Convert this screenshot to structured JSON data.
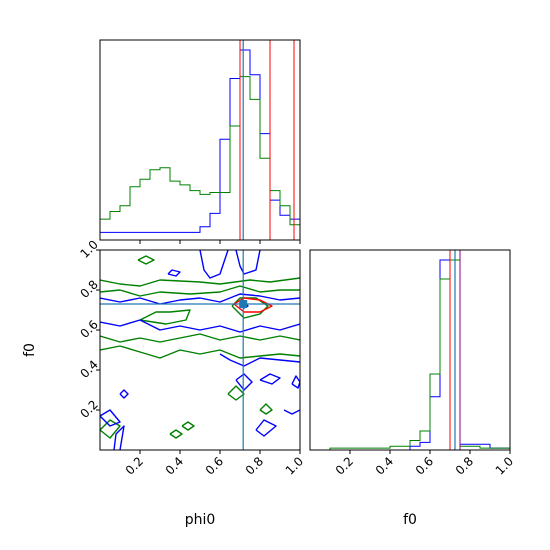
{
  "chart_data": [
    {
      "type": "line",
      "panel": "phi0-histogram",
      "xlim": [
        0,
        1
      ],
      "series": [
        {
          "color": "#0000ff",
          "edges": [
            0.0,
            0.05,
            0.1,
            0.15,
            0.2,
            0.25,
            0.3,
            0.35,
            0.4,
            0.45,
            0.5,
            0.55,
            0.6,
            0.65,
            0.7,
            0.75,
            0.8,
            0.85,
            0.9,
            0.95,
            1.0
          ],
          "values": [
            0.04,
            0.04,
            0.04,
            0.04,
            0.04,
            0.04,
            0.04,
            0.04,
            0.04,
            0.04,
            0.07,
            0.14,
            0.53,
            0.85,
            1.0,
            0.87,
            0.56,
            0.21,
            0.13,
            0.11
          ]
        },
        {
          "color": "#008000",
          "edges": [
            0.0,
            0.05,
            0.1,
            0.15,
            0.2,
            0.25,
            0.3,
            0.35,
            0.4,
            0.45,
            0.5,
            0.55,
            0.6,
            0.65,
            0.7,
            0.75,
            0.8,
            0.85,
            0.9,
            0.95,
            1.0
          ],
          "values": [
            0.11,
            0.15,
            0.18,
            0.28,
            0.32,
            0.37,
            0.38,
            0.31,
            0.29,
            0.26,
            0.24,
            0.25,
            0.25,
            0.6,
            0.86,
            0.74,
            0.43,
            0.26,
            0.18,
            0.08
          ]
        },
        {
          "color": "#ff0000",
          "vertical_lines": [
            0.7,
            0.85,
            0.97
          ]
        }
      ],
      "truth_line": 0.716
    },
    {
      "type": "line",
      "panel": "f0-histogram",
      "xlim": [
        0,
        1
      ],
      "series": [
        {
          "color": "#0000ff",
          "edges": [
            0.0,
            0.05,
            0.1,
            0.15,
            0.2,
            0.25,
            0.3,
            0.35,
            0.4,
            0.45,
            0.5,
            0.55,
            0.6,
            0.65,
            0.7,
            0.75,
            0.8,
            0.85,
            0.9,
            0.95,
            1.0
          ],
          "values": [
            0,
            0,
            0,
            0,
            0,
            0,
            0,
            0,
            0,
            0,
            0.02,
            0.04,
            0.28,
            1.0,
            1.0,
            0.03,
            0.03,
            0.03,
            0.01,
            0.01
          ]
        },
        {
          "color": "#008000",
          "edges": [
            0.0,
            0.05,
            0.1,
            0.15,
            0.2,
            0.25,
            0.3,
            0.35,
            0.4,
            0.45,
            0.5,
            0.55,
            0.6,
            0.65,
            0.7,
            0.75,
            0.8,
            0.85,
            0.9,
            0.95,
            1.0
          ],
          "values": [
            0,
            0,
            0.01,
            0.01,
            0.01,
            0.01,
            0.01,
            0.01,
            0.02,
            0.02,
            0.05,
            0.1,
            0.4,
            0.9,
            1.0,
            0.02,
            0.02,
            0.01,
            0.01,
            0.01
          ]
        },
        {
          "color": "#ff0000",
          "vertical_lines": [
            0.7
          ]
        },
        {
          "color": "#8b008b",
          "vertical_lines": [
            0.75
          ]
        }
      ],
      "truth_line": 0.725,
      "xticks": [
        "0.2",
        "0.4",
        "0.6",
        "0.8",
        "1.0"
      ],
      "xlabel": "f0"
    },
    {
      "type": "scatter",
      "panel": "phi0-vs-f0-contours",
      "xlim": [
        0,
        1
      ],
      "ylim": [
        0,
        1
      ],
      "xticks": [
        "0.2",
        "0.4",
        "0.6",
        "0.8",
        "1.0"
      ],
      "yticks": [
        "0.2",
        "0.4",
        "0.6",
        "0.8",
        "1.0"
      ],
      "xlabel": "phi0",
      "ylabel": "f0",
      "truth": {
        "x": 0.716,
        "y": 0.73
      },
      "contours": [
        {
          "color": "#008000",
          "points": [
            [
              0.0,
              0.79
            ],
            [
              0.1,
              0.8
            ],
            [
              0.2,
              0.77
            ],
            [
              0.3,
              0.79
            ],
            [
              0.45,
              0.78
            ],
            [
              0.6,
              0.79
            ],
            [
              0.7,
              0.82
            ],
            [
              0.8,
              0.79
            ],
            [
              0.9,
              0.8
            ],
            [
              1.0,
              0.8
            ]
          ]
        },
        {
          "color": "#008000",
          "points": [
            [
              0.0,
              0.85
            ],
            [
              0.1,
              0.83
            ],
            [
              0.2,
              0.82
            ],
            [
              0.3,
              0.85
            ],
            [
              0.5,
              0.84
            ],
            [
              0.6,
              0.83
            ],
            [
              0.75,
              0.85
            ],
            [
              0.85,
              0.84
            ],
            [
              1.0,
              0.86
            ]
          ]
        },
        {
          "color": "#008000",
          "points": [
            [
              0.35,
              0.69
            ],
            [
              0.45,
              0.7
            ],
            [
              0.43,
              0.65
            ],
            [
              0.33,
              0.63
            ],
            [
              0.2,
              0.65
            ],
            [
              0.28,
              0.69
            ],
            [
              0.35,
              0.69
            ]
          ]
        },
        {
          "color": "#008000",
          "points": [
            [
              0.0,
              0.5
            ],
            [
              0.1,
              0.52
            ],
            [
              0.2,
              0.49
            ],
            [
              0.3,
              0.46
            ],
            [
              0.4,
              0.5
            ],
            [
              0.5,
              0.48
            ],
            [
              0.6,
              0.5
            ],
            [
              0.7,
              0.46
            ],
            [
              0.8,
              0.47
            ],
            [
              0.9,
              0.48
            ],
            [
              1.0,
              0.47
            ]
          ]
        },
        {
          "color": "#008000",
          "points": [
            [
              0.0,
              0.57
            ],
            [
              0.1,
              0.54
            ],
            [
              0.2,
              0.56
            ],
            [
              0.3,
              0.54
            ],
            [
              0.4,
              0.56
            ],
            [
              0.5,
              0.58
            ],
            [
              0.6,
              0.55
            ],
            [
              0.7,
              0.57
            ],
            [
              0.8,
              0.55
            ],
            [
              0.9,
              0.57
            ],
            [
              1.0,
              0.55
            ]
          ]
        },
        {
          "color": "#008000",
          "points": [
            [
              0.66,
              0.72
            ],
            [
              0.72,
              0.66
            ],
            [
              0.8,
              0.68
            ],
            [
              0.84,
              0.72
            ],
            [
              0.78,
              0.76
            ],
            [
              0.7,
              0.76
            ],
            [
              0.66,
              0.72
            ]
          ]
        },
        {
          "color": "#008000",
          "points": [
            [
              0.19,
              0.95
            ],
            [
              0.23,
              0.93
            ],
            [
              0.27,
              0.95
            ],
            [
              0.23,
              0.97
            ],
            [
              0.19,
              0.95
            ]
          ]
        },
        {
          "color": "#008000",
          "points": [
            [
              0.0,
              0.1
            ],
            [
              0.05,
              0.06
            ],
            [
              0.1,
              0.12
            ],
            [
              0.05,
              0.15
            ],
            [
              0.0,
              0.1
            ]
          ]
        },
        {
          "color": "#008000",
          "points": [
            [
              0.64,
              0.28
            ],
            [
              0.68,
              0.25
            ],
            [
              0.72,
              0.28
            ],
            [
              0.68,
              0.32
            ],
            [
              0.64,
              0.28
            ]
          ]
        },
        {
          "color": "#008000",
          "points": [
            [
              0.35,
              0.08
            ],
            [
              0.38,
              0.06
            ],
            [
              0.41,
              0.08
            ],
            [
              0.38,
              0.1
            ],
            [
              0.35,
              0.08
            ]
          ]
        },
        {
          "color": "#008000",
          "points": [
            [
              0.41,
              0.12
            ],
            [
              0.44,
              0.1
            ],
            [
              0.47,
              0.12
            ],
            [
              0.44,
              0.14
            ],
            [
              0.41,
              0.12
            ]
          ]
        },
        {
          "color": "#008000",
          "points": [
            [
              0.8,
              0.2
            ],
            [
              0.83,
              0.18
            ],
            [
              0.86,
              0.2
            ],
            [
              0.83,
              0.23
            ],
            [
              0.8,
              0.2
            ]
          ]
        },
        {
          "color": "#0000ff",
          "points": [
            [
              0.0,
              0.64
            ],
            [
              0.1,
              0.62
            ],
            [
              0.2,
              0.65
            ],
            [
              0.3,
              0.6
            ],
            [
              0.4,
              0.62
            ],
            [
              0.5,
              0.6
            ],
            [
              0.6,
              0.62
            ],
            [
              0.7,
              0.59
            ],
            [
              0.8,
              0.62
            ],
            [
              0.9,
              0.6
            ],
            [
              1.0,
              0.63
            ]
          ]
        },
        {
          "color": "#0000ff",
          "points": [
            [
              0.0,
              0.76
            ],
            [
              0.1,
              0.74
            ],
            [
              0.2,
              0.76
            ],
            [
              0.3,
              0.73
            ],
            [
              0.4,
              0.75
            ],
            [
              0.5,
              0.76
            ],
            [
              0.6,
              0.74
            ],
            [
              0.7,
              0.78
            ],
            [
              0.8,
              0.77
            ],
            [
              0.9,
              0.75
            ],
            [
              1.0,
              0.76
            ]
          ]
        },
        {
          "color": "#0000ff",
          "points": [
            [
              0.5,
              1.0
            ],
            [
              0.52,
              0.9
            ],
            [
              0.55,
              0.86
            ],
            [
              0.6,
              0.88
            ],
            [
              0.64,
              1.0
            ]
          ]
        },
        {
          "color": "#0000ff",
          "points": [
            [
              0.68,
              1.0
            ],
            [
              0.7,
              0.92
            ],
            [
              0.72,
              0.88
            ],
            [
              0.78,
              0.9
            ],
            [
              0.8,
              1.0
            ]
          ]
        },
        {
          "color": "#0000ff",
          "points": [
            [
              0.6,
              0.48
            ],
            [
              0.65,
              0.45
            ],
            [
              0.72,
              0.42
            ],
            [
              0.8,
              0.46
            ],
            [
              0.9,
              0.45
            ],
            [
              1.0,
              0.44
            ]
          ]
        },
        {
          "color": "#0000ff",
          "points": [
            [
              0.68,
              0.35
            ],
            [
              0.72,
              0.3
            ],
            [
              0.76,
              0.34
            ],
            [
              0.72,
              0.38
            ],
            [
              0.68,
              0.35
            ]
          ]
        },
        {
          "color": "#0000ff",
          "points": [
            [
              0.8,
              0.35
            ],
            [
              0.86,
              0.33
            ],
            [
              0.9,
              0.36
            ],
            [
              0.85,
              0.38
            ],
            [
              0.8,
              0.35
            ]
          ]
        },
        {
          "color": "#0000ff",
          "points": [
            [
              0.96,
              0.33
            ],
            [
              0.99,
              0.31
            ],
            [
              1.0,
              0.34
            ],
            [
              0.98,
              0.37
            ],
            [
              0.96,
              0.33
            ]
          ]
        },
        {
          "color": "#0000ff",
          "points": [
            [
              0.0,
              0.17
            ],
            [
              0.05,
              0.2
            ],
            [
              0.1,
              0.14
            ],
            [
              0.05,
              0.12
            ],
            [
              0.0,
              0.17
            ]
          ]
        },
        {
          "color": "#0000ff",
          "points": [
            [
              0.07,
              0.0
            ],
            [
              0.08,
              0.08
            ],
            [
              0.12,
              0.12
            ],
            [
              0.1,
              0.0
            ]
          ]
        },
        {
          "color": "#0000ff",
          "points": [
            [
              0.1,
              0.28
            ],
            [
              0.12,
              0.26
            ],
            [
              0.14,
              0.28
            ],
            [
              0.12,
              0.3
            ],
            [
              0.1,
              0.28
            ]
          ]
        },
        {
          "color": "#0000ff",
          "points": [
            [
              0.34,
              0.88
            ],
            [
              0.38,
              0.87
            ],
            [
              0.4,
              0.89
            ],
            [
              0.36,
              0.9
            ],
            [
              0.34,
              0.88
            ]
          ]
        },
        {
          "color": "#0000ff",
          "points": [
            [
              0.78,
              0.1
            ],
            [
              0.82,
              0.07
            ],
            [
              0.88,
              0.12
            ],
            [
              0.82,
              0.15
            ],
            [
              0.78,
              0.1
            ]
          ]
        },
        {
          "color": "#0000ff",
          "points": [
            [
              0.92,
              0.2
            ],
            [
              0.96,
              0.18
            ],
            [
              1.0,
              0.2
            ]
          ]
        },
        {
          "color": "#0000ff",
          "points": [
            [
              0.7,
              0.72
            ],
            [
              0.72,
              0.71
            ],
            [
              0.74,
              0.72
            ],
            [
              0.72,
              0.74
            ],
            [
              0.7,
              0.72
            ]
          ]
        },
        {
          "color": "#ff0000",
          "points": [
            [
              0.67,
              0.73
            ],
            [
              0.72,
              0.76
            ],
            [
              0.8,
              0.75
            ],
            [
              0.86,
              0.72
            ],
            [
              0.8,
              0.69
            ],
            [
              0.72,
              0.69
            ],
            [
              0.67,
              0.73
            ]
          ]
        }
      ]
    }
  ],
  "colors": {
    "blue": "#0000ff",
    "green": "#008000",
    "red": "#ff0000",
    "purple": "#8b008b",
    "truth": "#1f77b4"
  },
  "xticks_bottom": [
    "0.2",
    "0.4",
    "0.6",
    "0.8",
    "1.0"
  ],
  "yticks_left": [
    "0.2",
    "0.4",
    "0.6",
    "0.8",
    "1.0"
  ],
  "xlabel_left": "phi0",
  "xlabel_right": "f0",
  "ylabel_left": "f0"
}
